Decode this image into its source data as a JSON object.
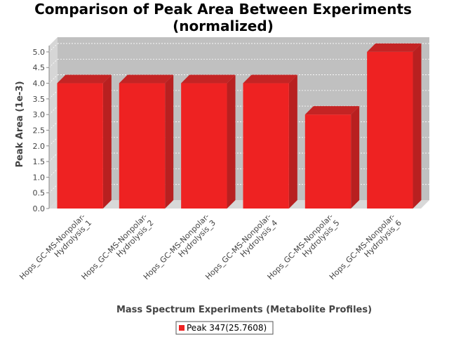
{
  "chart_data": {
    "type": "bar",
    "title": [
      "Comparison of Peak Area Between Experiments",
      "(normalized)"
    ],
    "xlabel": "Mass Spectrum Experiments (Metabolite Profiles)",
    "ylabel": "Peak Area (1e-3)",
    "categories": [
      [
        "Hops_GC-MS-Nonpolar-",
        "Hydrolysis_1"
      ],
      [
        "Hops_GC-MS-Nonpolar-",
        "Hydrolysis_2"
      ],
      [
        "Hops_GC-MS-Nonpolar-",
        "Hydrolysis_3"
      ],
      [
        "Hops_GC-MS-Nonpolar-",
        "Hydrolysis_4"
      ],
      [
        "Hops_GC-MS-Nonpolar-",
        "Hydrolysis_5"
      ],
      [
        "Hops_GC-MS-Nonpolar-",
        "Hydrolysis_6"
      ]
    ],
    "series": [
      {
        "name": "Peak 347(25.7608)",
        "values": [
          4.0,
          4.0,
          4.0,
          4.0,
          3.0,
          5.0
        ]
      }
    ],
    "ylim": [
      0,
      5.2
    ],
    "yticks": [
      "0.0",
      "0.5",
      "1.0",
      "1.5",
      "2.0",
      "2.5",
      "3.0",
      "3.5",
      "4.0",
      "4.5",
      "5.0"
    ],
    "grid": true,
    "legend_position": "bottom-center",
    "colors": {
      "bar": "#ee2222",
      "bar_top": "#c42424",
      "bar_side": "#b82020",
      "plot_back": "#c0c0c0",
      "plot_floor": "#d8d8d8",
      "plot_wall": "#d6d6d6",
      "grid": "#ffffff"
    }
  }
}
